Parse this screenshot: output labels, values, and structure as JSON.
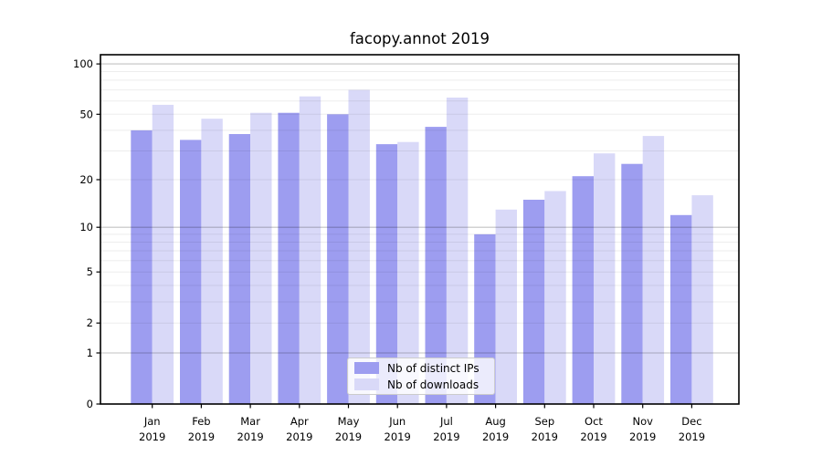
{
  "chart_data": {
    "type": "bar",
    "title": "facopy.annot 2019",
    "categories": [
      "Jan",
      "Feb",
      "Mar",
      "Apr",
      "May",
      "Jun",
      "Jul",
      "Aug",
      "Sep",
      "Oct",
      "Nov",
      "Dec"
    ],
    "category_year": "2019",
    "series": [
      {
        "name": "Nb of distinct IPs",
        "color": "#9d9df0",
        "values": [
          40,
          35,
          38,
          51,
          50,
          33,
          42,
          9,
          15,
          21,
          25,
          12
        ]
      },
      {
        "name": "Nb of downloads",
        "color": "#d9d9f8",
        "values": [
          57,
          47,
          51,
          64,
          70,
          34,
          63,
          13,
          17,
          29,
          37,
          16
        ]
      }
    ],
    "yscale": "log1p",
    "ylim": [
      0,
      112
    ],
    "yticks": [
      0,
      1,
      2,
      5,
      10,
      20,
      50,
      100
    ],
    "major_gridlines": [
      1,
      10,
      100
    ],
    "minor_gridlines": [
      2,
      3,
      4,
      5,
      6,
      7,
      8,
      9,
      20,
      30,
      40,
      50,
      60,
      70,
      80,
      90
    ],
    "grid": true,
    "legend_position": "lower-center-inside",
    "xlabel": "",
    "ylabel": ""
  }
}
